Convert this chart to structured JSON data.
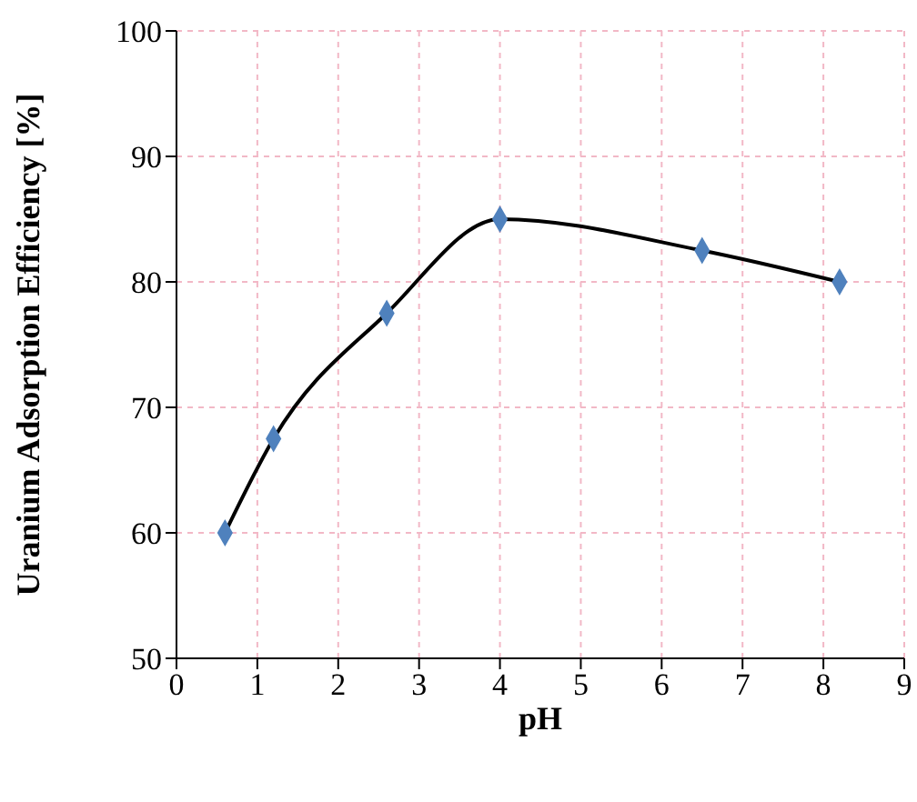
{
  "chart_data": {
    "type": "scatter",
    "xlabel": "pH",
    "ylabel": "Uranium Adsorption Efficiency [%]",
    "x": [
      0.6,
      1.2,
      2.6,
      4,
      6.5,
      8.2
    ],
    "series": [
      {
        "type": "line",
        "color": "#000000",
        "marker": "none",
        "values": [
          60,
          67.5,
          77.5,
          85,
          82.5,
          80
        ]
      },
      {
        "color": "#4f81bd",
        "marker": "diamond",
        "values": [
          60,
          67.5,
          77.5,
          85,
          82.5,
          80
        ]
      }
    ],
    "xlim": [
      0,
      9
    ],
    "xticks": [
      0,
      1,
      2,
      3,
      4,
      5,
      6,
      7,
      8,
      9
    ],
    "ylim": [
      50,
      100
    ],
    "yticks": [
      50,
      60,
      70,
      80,
      90,
      100
    ],
    "grid": true,
    "legend": false
  }
}
